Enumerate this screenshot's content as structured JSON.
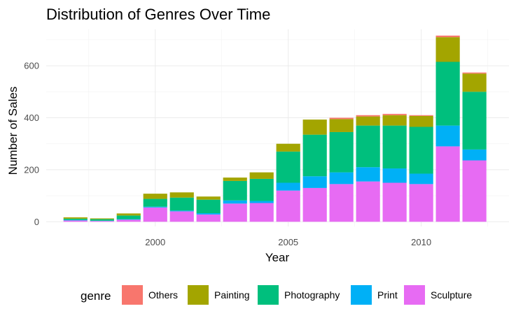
{
  "chart_data": {
    "type": "bar",
    "stacked": true,
    "title": "Distribution of Genres Over Time",
    "xlabel": "Year",
    "ylabel": "Number of Sales",
    "categories": [
      1997,
      1998,
      1999,
      2000,
      2001,
      2002,
      2003,
      2004,
      2005,
      2006,
      2007,
      2008,
      2009,
      2010,
      2011,
      2012
    ],
    "x_ticks": [
      2000,
      2005,
      2010
    ],
    "y_ticks": [
      0,
      200,
      400,
      600
    ],
    "xlim": [
      1995.9,
      2013.3
    ],
    "ylim": [
      -18,
      740
    ],
    "grid": true,
    "legend": {
      "title": "genre",
      "position": "bottom"
    },
    "series": [
      {
        "name": "Sculpture",
        "color": "#E76BF3",
        "values": [
          5,
          3,
          8,
          55,
          40,
          28,
          70,
          72,
          120,
          130,
          145,
          155,
          150,
          145,
          290,
          236
        ]
      },
      {
        "name": "Print",
        "color": "#00B0F6",
        "values": [
          2,
          1,
          2,
          3,
          3,
          5,
          12,
          8,
          30,
          45,
          45,
          55,
          55,
          40,
          80,
          42
        ]
      },
      {
        "name": "Photography",
        "color": "#00BF7D",
        "values": [
          5,
          6,
          14,
          30,
          50,
          52,
          75,
          85,
          120,
          160,
          155,
          160,
          165,
          180,
          245,
          222
        ]
      },
      {
        "name": "Painting",
        "color": "#A3A500",
        "values": [
          5,
          3,
          8,
          20,
          20,
          12,
          13,
          25,
          30,
          58,
          50,
          35,
          40,
          42,
          95,
          70
        ]
      },
      {
        "name": "Others",
        "color": "#F8766D",
        "values": [
          0,
          0,
          0,
          0,
          0,
          0,
          0,
          0,
          0,
          0,
          5,
          5,
          5,
          3,
          6,
          4
        ]
      }
    ],
    "legend_order": [
      "Others",
      "Painting",
      "Photography",
      "Print",
      "Sculpture"
    ]
  }
}
